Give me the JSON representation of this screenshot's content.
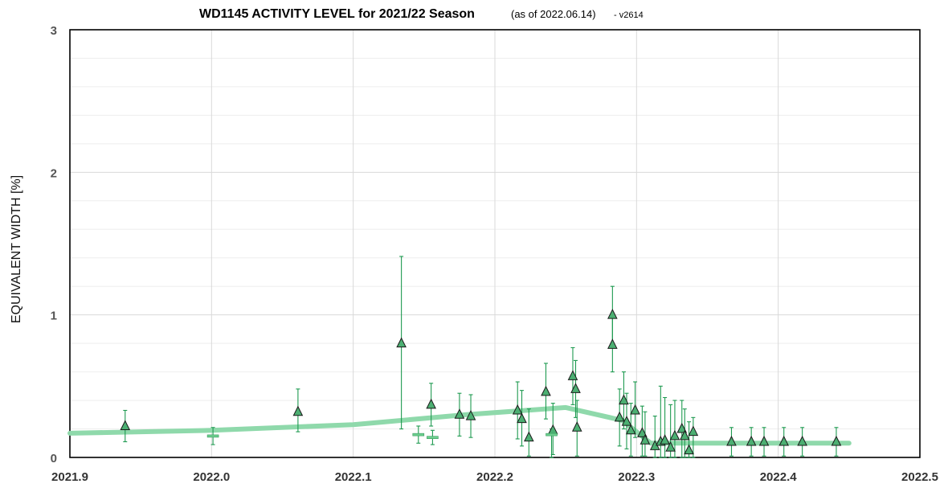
{
  "chart_data": {
    "type": "scatter",
    "title": "WD1145 ACTIVITY LEVEL for 2021/22 Season",
    "subtitle": "(as of 2022.06.14)",
    "version": "- v2614",
    "ylabel": "EQUIVALENT WIDTH [%]",
    "xlabel": "",
    "xlim": [
      2021.9,
      2022.5
    ],
    "ylim": [
      0,
      3
    ],
    "x_ticks": [
      "2021.9",
      "2022.0",
      "2022.1",
      "2022.2",
      "2022.3",
      "2022.4",
      "2022.5"
    ],
    "y_ticks": [
      "0",
      "1",
      "2",
      "3"
    ],
    "grid": true,
    "colors": {
      "marker_fill": "#4caf72",
      "marker_edge": "#1a1a1a",
      "errorbar": "#1e9a50",
      "trend": "#8fd9ab",
      "dash_marker": "#6ccf8e",
      "grid_major": "#d9d9d9",
      "grid_minor": "#eeeeee"
    },
    "series": [
      {
        "marker": "triangle",
        "points": [
          {
            "x": 2021.939,
            "y": 0.22,
            "lo": 0.11,
            "hi": 0.33
          },
          {
            "x": 2022.061,
            "y": 0.32,
            "lo": 0.18,
            "hi": 0.48
          },
          {
            "x": 2022.134,
            "y": 0.8,
            "lo": 0.2,
            "hi": 1.41
          },
          {
            "x": 2022.155,
            "y": 0.37,
            "lo": 0.22,
            "hi": 0.52
          },
          {
            "x": 2022.175,
            "y": 0.3,
            "lo": 0.15,
            "hi": 0.45
          },
          {
            "x": 2022.183,
            "y": 0.29,
            "lo": 0.14,
            "hi": 0.44
          },
          {
            "x": 2022.216,
            "y": 0.33,
            "lo": 0.13,
            "hi": 0.53
          },
          {
            "x": 2022.219,
            "y": 0.27,
            "lo": 0.08,
            "hi": 0.47
          },
          {
            "x": 2022.224,
            "y": 0.14,
            "lo": 0.01,
            "hi": 0.34
          },
          {
            "x": 2022.236,
            "y": 0.46,
            "lo": 0.27,
            "hi": 0.66
          },
          {
            "x": 2022.241,
            "y": 0.19,
            "lo": 0.02,
            "hi": 0.38
          },
          {
            "x": 2022.255,
            "y": 0.57,
            "lo": 0.37,
            "hi": 0.77
          },
          {
            "x": 2022.257,
            "y": 0.48,
            "lo": 0.28,
            "hi": 0.68
          },
          {
            "x": 2022.258,
            "y": 0.21,
            "lo": 0.01,
            "hi": 0.4
          },
          {
            "x": 2022.283,
            "y": 1.0,
            "lo": 0.8,
            "hi": 1.2
          },
          {
            "x": 2022.283,
            "y": 0.79,
            "lo": 0.6,
            "hi": 0.99
          },
          {
            "x": 2022.288,
            "y": 0.28,
            "lo": 0.08,
            "hi": 0.48
          },
          {
            "x": 2022.291,
            "y": 0.4,
            "lo": 0.2,
            "hi": 0.6
          },
          {
            "x": 2022.293,
            "y": 0.25,
            "lo": 0.06,
            "hi": 0.45
          },
          {
            "x": 2022.296,
            "y": 0.19,
            "lo": 0.01,
            "hi": 0.38
          },
          {
            "x": 2022.299,
            "y": 0.33,
            "lo": 0.14,
            "hi": 0.53
          },
          {
            "x": 2022.304,
            "y": 0.17,
            "lo": 0.01,
            "hi": 0.36
          },
          {
            "x": 2022.306,
            "y": 0.12,
            "lo": 0.01,
            "hi": 0.32
          },
          {
            "x": 2022.313,
            "y": 0.08,
            "lo": 0.0,
            "hi": 0.29
          },
          {
            "x": 2022.317,
            "y": 0.11,
            "lo": 0.0,
            "hi": 0.5
          },
          {
            "x": 2022.32,
            "y": 0.12,
            "lo": 0.0,
            "hi": 0.42
          },
          {
            "x": 2022.324,
            "y": 0.07,
            "lo": 0.0,
            "hi": 0.37
          },
          {
            "x": 2022.327,
            "y": 0.15,
            "lo": 0.0,
            "hi": 0.4
          },
          {
            "x": 2022.332,
            "y": 0.2,
            "lo": 0.0,
            "hi": 0.4
          },
          {
            "x": 2022.334,
            "y": 0.15,
            "lo": 0.0,
            "hi": 0.34
          },
          {
            "x": 2022.337,
            "y": 0.05,
            "lo": 0.0,
            "hi": 0.25
          },
          {
            "x": 2022.34,
            "y": 0.18,
            "lo": 0.0,
            "hi": 0.28
          },
          {
            "x": 2022.367,
            "y": 0.11,
            "lo": 0.01,
            "hi": 0.21
          },
          {
            "x": 2022.381,
            "y": 0.11,
            "lo": 0.01,
            "hi": 0.21
          },
          {
            "x": 2022.39,
            "y": 0.11,
            "lo": 0.01,
            "hi": 0.21
          },
          {
            "x": 2022.404,
            "y": 0.11,
            "lo": 0.01,
            "hi": 0.21
          },
          {
            "x": 2022.417,
            "y": 0.11,
            "lo": 0.01,
            "hi": 0.21
          },
          {
            "x": 2022.441,
            "y": 0.11,
            "lo": 0.01,
            "hi": 0.21
          }
        ]
      },
      {
        "marker": "dash",
        "points": [
          {
            "x": 2022.001,
            "y": 0.15,
            "lo": 0.09,
            "hi": 0.21
          },
          {
            "x": 2022.146,
            "y": 0.16,
            "lo": 0.1,
            "hi": 0.22
          },
          {
            "x": 2022.156,
            "y": 0.14,
            "lo": 0.09,
            "hi": 0.19
          },
          {
            "x": 2022.24,
            "y": 0.16,
            "lo": 0.0,
            "hi": 0.2
          }
        ]
      }
    ],
    "trend": {
      "x": [
        2021.9,
        2022.0,
        2022.1,
        2022.18,
        2022.25,
        2022.29,
        2022.31,
        2022.45
      ],
      "y": [
        0.17,
        0.19,
        0.23,
        0.3,
        0.35,
        0.26,
        0.1,
        0.1
      ]
    }
  }
}
